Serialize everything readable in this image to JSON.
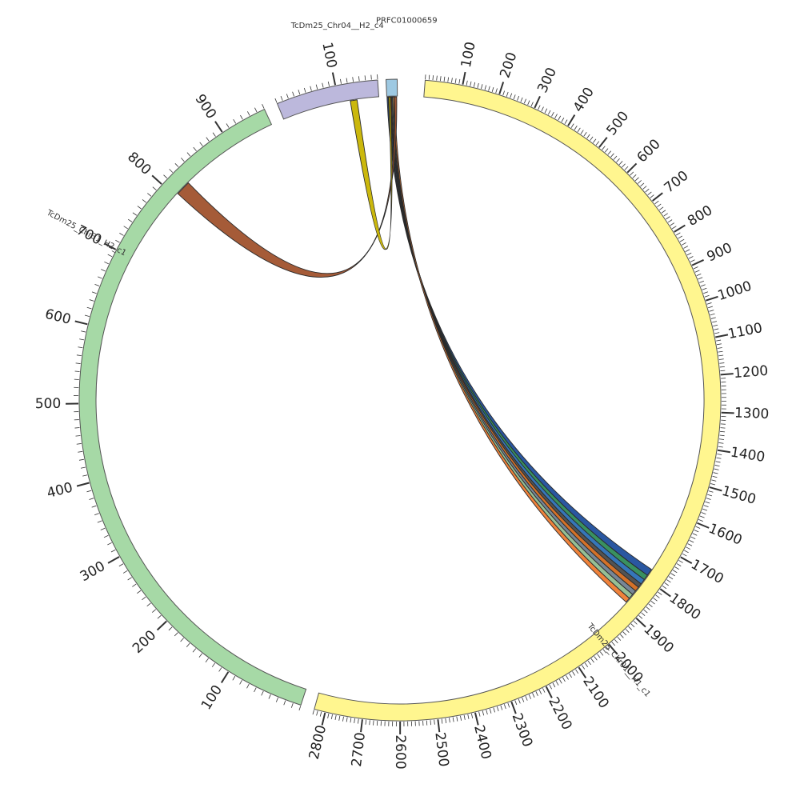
{
  "chart_data": {
    "type": "circos",
    "title": "",
    "segments": [
      {
        "id": "chr01",
        "name": "TcDm25_Chr01__H1_c1",
        "length": 2830,
        "start_angle": 4.5,
        "end_angle": 195.5,
        "color": "#fff68f",
        "tick_step": 100,
        "label_ticks": true
      },
      {
        "id": "chr31",
        "name": "TcDm25_Chr31_H2_c1",
        "length": 960,
        "start_angle": 198.0,
        "end_angle": 335.0,
        "color": "#a6d9a6",
        "tick_step": 100,
        "label_ticks": true
      },
      {
        "id": "chr04",
        "name": "TcDm25_Chr04__H2_c4",
        "length": 170,
        "start_angle": 337.5,
        "end_angle": 356.0,
        "color": "#bcb8dc",
        "tick_step": 100,
        "label_ticks": true
      },
      {
        "id": "prfc",
        "name": "PRFC01000659",
        "length": 8,
        "start_angle": 357.5,
        "end_angle": 359.5,
        "color": "#9ec9e2",
        "tick_step": 0,
        "label_ticks": false
      }
    ],
    "links": [
      {
        "from": "prfc",
        "from_pos": [
          0.2,
          1.2
        ],
        "to": "chr01",
        "to_pos": [
          1770,
          1790
        ],
        "color": "#1f4e9c"
      },
      {
        "from": "prfc",
        "from_pos": [
          1.0,
          2.0
        ],
        "to": "chr01",
        "to_pos": [
          1790,
          1805
        ],
        "color": "#2e8b57"
      },
      {
        "from": "prfc",
        "from_pos": [
          1.6,
          2.6
        ],
        "to": "chr01",
        "to_pos": [
          1805,
          1820
        ],
        "color": "#2a6fb5"
      },
      {
        "from": "prfc",
        "from_pos": [
          2.4,
          3.4
        ],
        "to": "chr01",
        "to_pos": [
          1820,
          1832
        ],
        "color": "#4a4a4a"
      },
      {
        "from": "prfc",
        "from_pos": [
          3.0,
          4.0
        ],
        "to": "chr01",
        "to_pos": [
          1832,
          1845
        ],
        "color": "#d2691e"
      },
      {
        "from": "prfc",
        "from_pos": [
          3.6,
          4.6
        ],
        "to": "chr01",
        "to_pos": [
          1845,
          1858
        ],
        "color": "#708090"
      },
      {
        "from": "prfc",
        "from_pos": [
          4.3,
          5.3
        ],
        "to": "chr01",
        "to_pos": [
          1858,
          1872
        ],
        "color": "#8fbc8f"
      },
      {
        "from": "prfc",
        "from_pos": [
          5.0,
          6.0
        ],
        "to": "chr01",
        "to_pos": [
          1872,
          1886
        ],
        "color": "#ee7b30"
      },
      {
        "from": "prfc",
        "from_pos": [
          6.0,
          7.5
        ],
        "to": "chr31",
        "to_pos": [
          805,
          825
        ],
        "color": "#a0522d"
      },
      {
        "from": "prfc",
        "from_pos": [
          1.5,
          2.8
        ],
        "to": "chr04",
        "to_pos": [
          120,
          132
        ],
        "color": "#c8b400"
      }
    ]
  }
}
